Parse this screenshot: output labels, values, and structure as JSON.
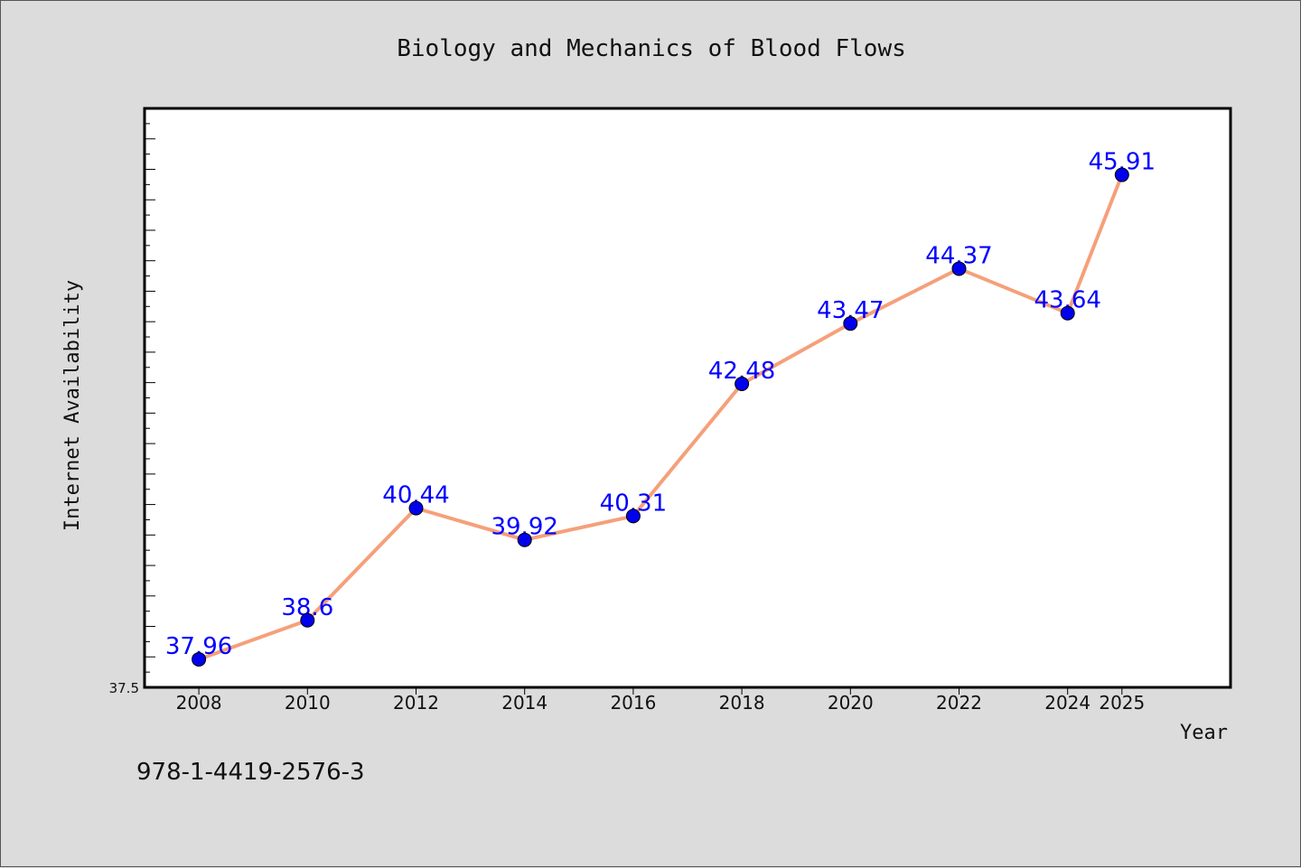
{
  "chart_data": {
    "type": "line",
    "title": "Biology and Mechanics of Blood Flows",
    "xlabel": "Year",
    "ylabel": "Internet Availability",
    "x": [
      "2008",
      "2010",
      "2012",
      "2014",
      "2016",
      "2018",
      "2020",
      "2022",
      "2024",
      "2025"
    ],
    "series": [
      {
        "values": [
          37.96,
          38.6,
          40.44,
          39.92,
          40.31,
          42.48,
          43.47,
          44.37,
          43.64,
          45.91
        ]
      }
    ],
    "data_labels": [
      "37.96",
      "38.6",
      "40.44",
      "39.92",
      "40.31",
      "42.48",
      "43.47",
      "44.37",
      "43.64",
      "45.91"
    ],
    "y_tick_labels": [
      "37.5"
    ],
    "ylim": [
      37.5,
      47.0
    ],
    "grid": false,
    "legend": "none",
    "line_color": "#f5a07a",
    "marker_color": "#0000ee",
    "label_color": "#0000ff",
    "plot_background": "#ffffff",
    "figure_background": "#dcdcdc"
  },
  "footer": {
    "isbn": "978-1-4419-2576-3"
  }
}
